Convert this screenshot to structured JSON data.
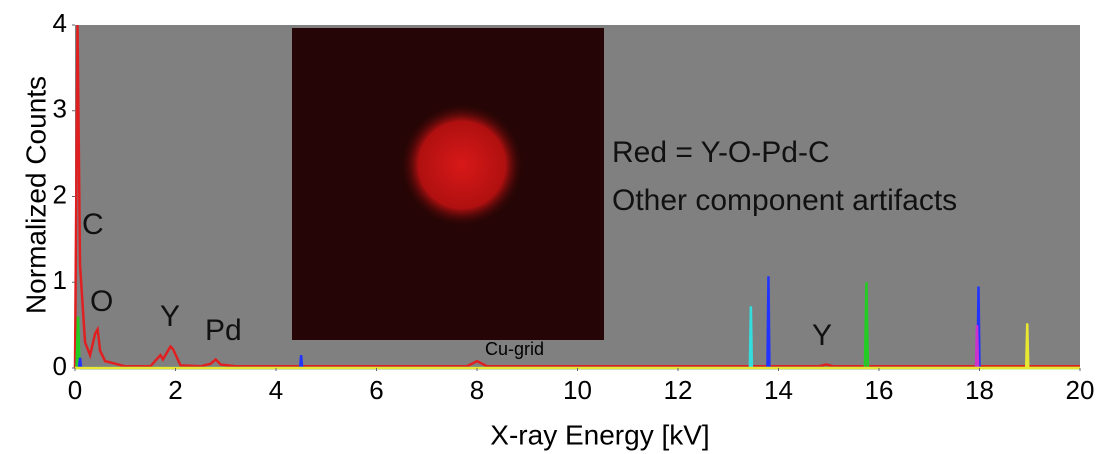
{
  "chart_data": {
    "type": "line",
    "xlabel": "X-ray Energy [kV]",
    "ylabel": "Normalized Counts",
    "xlim": [
      0,
      20
    ],
    "xticks": [
      0,
      2,
      4,
      6,
      8,
      10,
      12,
      14,
      16,
      18,
      20
    ],
    "ylim": [
      0,
      4
    ],
    "yticks": [
      0,
      1,
      2,
      3,
      4
    ],
    "grid": false,
    "annotations": [
      "C",
      "O",
      "Y",
      "Pd",
      "Cu-grid",
      "Y",
      "Red = Y-O-Pd-C",
      "Other component artifacts"
    ],
    "series": [
      {
        "color": "#e02020",
        "x": [
          0,
          0.05,
          0.1,
          0.2,
          0.3,
          0.4,
          0.45,
          0.5,
          0.6,
          0.8,
          1.0,
          1.5,
          1.7,
          1.75,
          1.8,
          1.9,
          1.95,
          2.1,
          2.5,
          2.7,
          2.8,
          2.9,
          3.2,
          7.8,
          8.0,
          8.2,
          14.8,
          14.95,
          15.1,
          20
        ],
        "values": [
          0,
          4,
          1.2,
          0.3,
          0.15,
          0.4,
          0.45,
          0.2,
          0.08,
          0.05,
          0.02,
          0.02,
          0.15,
          0.1,
          0.15,
          0.25,
          0.22,
          0.03,
          0.02,
          0.05,
          0.1,
          0.04,
          0.02,
          0.02,
          0.08,
          0.02,
          0.02,
          0.04,
          0.02,
          0.02
        ]
      },
      {
        "color": "#22cc22",
        "x": [
          0,
          0.03,
          0.06,
          0.09,
          15.72,
          15.75,
          15.78,
          20
        ],
        "values": [
          0,
          0,
          0.6,
          0,
          0,
          1.0,
          0,
          0
        ]
      },
      {
        "color": "#2233ff",
        "x": [
          0.08,
          0.1,
          0.12,
          4.48,
          4.5,
          4.52,
          13.78,
          13.8,
          13.82,
          17.96,
          17.98,
          18.0
        ],
        "values": [
          0,
          0.12,
          0,
          0,
          0.15,
          0,
          0,
          1.07,
          0,
          0,
          0.95,
          0
        ]
      },
      {
        "color": "#33dddd",
        "x": [
          13.43,
          13.45,
          13.47
        ],
        "values": [
          0,
          0.72,
          0
        ]
      },
      {
        "color": "#cc33cc",
        "x": [
          17.93,
          17.95,
          17.97
        ],
        "values": [
          0,
          0.5,
          0
        ]
      },
      {
        "color": "#e8e830",
        "x": [
          0,
          18.93,
          18.95,
          18.97,
          20
        ],
        "values": [
          0,
          0,
          0.52,
          0,
          0
        ]
      }
    ]
  }
}
